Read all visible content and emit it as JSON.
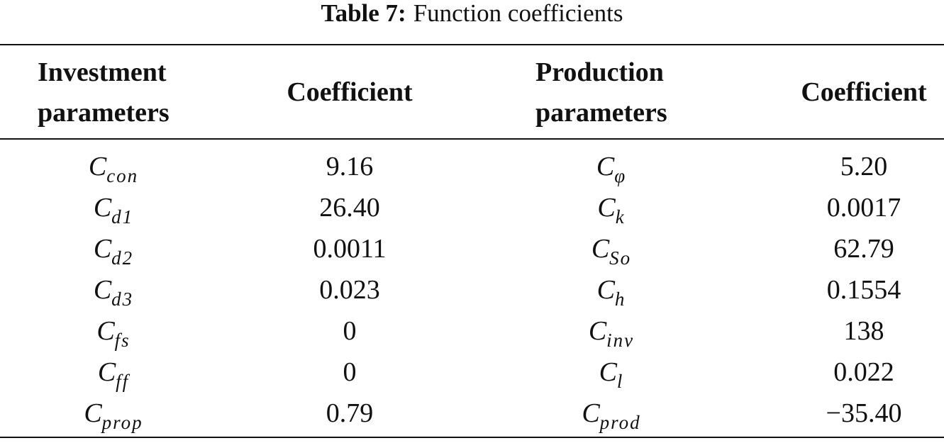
{
  "caption": {
    "label": "Table 7:",
    "text": "Function coefficients"
  },
  "table": {
    "header": [
      [
        "Investment",
        "parameters"
      ],
      [
        "Coefficient"
      ],
      [
        "Production",
        "parameters"
      ],
      [
        "Coefficient"
      ]
    ],
    "rows": [
      [
        {
          "base": "C",
          "sub": "con"
        },
        "9.16",
        {
          "base": "C",
          "sub": "φ"
        },
        "5.20"
      ],
      [
        {
          "base": "C",
          "sub": "d1"
        },
        "26.40",
        {
          "base": "C",
          "sub": "k"
        },
        "0.0017"
      ],
      [
        {
          "base": "C",
          "sub": "d2"
        },
        "0.0011",
        {
          "base": "C",
          "sub": "So"
        },
        "62.79"
      ],
      [
        {
          "base": "C",
          "sub": "d3"
        },
        "0.023",
        {
          "base": "C",
          "sub": "h"
        },
        "0.1554"
      ],
      [
        {
          "base": "C",
          "sub": "fs"
        },
        "0",
        {
          "base": "C",
          "sub": "inv"
        },
        "138"
      ],
      [
        {
          "base": "C",
          "sub": "ff"
        },
        "0",
        {
          "base": "C",
          "sub": "l"
        },
        "0.022"
      ],
      [
        {
          "base": "C",
          "sub": "prop"
        },
        "0.79",
        {
          "base": "C",
          "sub": "prod"
        },
        "−35.40"
      ]
    ]
  }
}
